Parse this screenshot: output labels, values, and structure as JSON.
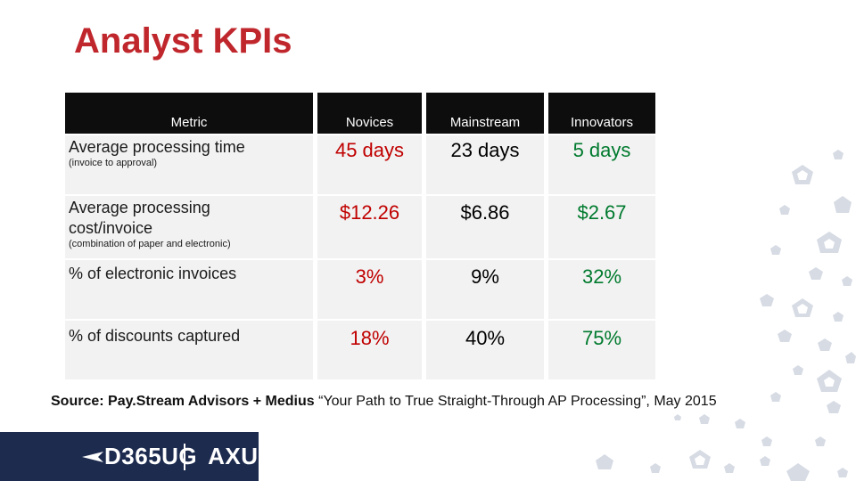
{
  "title": "Analyst KPIs",
  "table": {
    "headers": [
      "Metric",
      "Novices",
      "Mainstream",
      "Innovators"
    ],
    "rows": [
      {
        "metric": "Average processing time",
        "note": "(invoice to approval)",
        "values": [
          "45 days",
          "23 days",
          "5 days"
        ]
      },
      {
        "metric_line1": "Average processing",
        "metric_line2": "cost/invoice",
        "note": "(combination of paper and electronic)",
        "values": [
          "$12.26",
          "$6.86",
          "$2.67"
        ]
      },
      {
        "metric": "% of electronic invoices",
        "values": [
          "3%",
          "9%",
          "32%"
        ]
      },
      {
        "metric": "% of discounts captured",
        "values": [
          "18%",
          "40%",
          "75%"
        ]
      }
    ],
    "colors": {
      "novices": "#c00000",
      "mainstream": "#000000",
      "innovators": "#007a2e"
    }
  },
  "source": {
    "bold": "Source: Pay.Stream Advisors + Medius",
    "rest": " “Your Path to True Straight-Through AP Processing”, May 2015"
  },
  "logo": {
    "left": "D365UG",
    "right": "AXUG"
  }
}
